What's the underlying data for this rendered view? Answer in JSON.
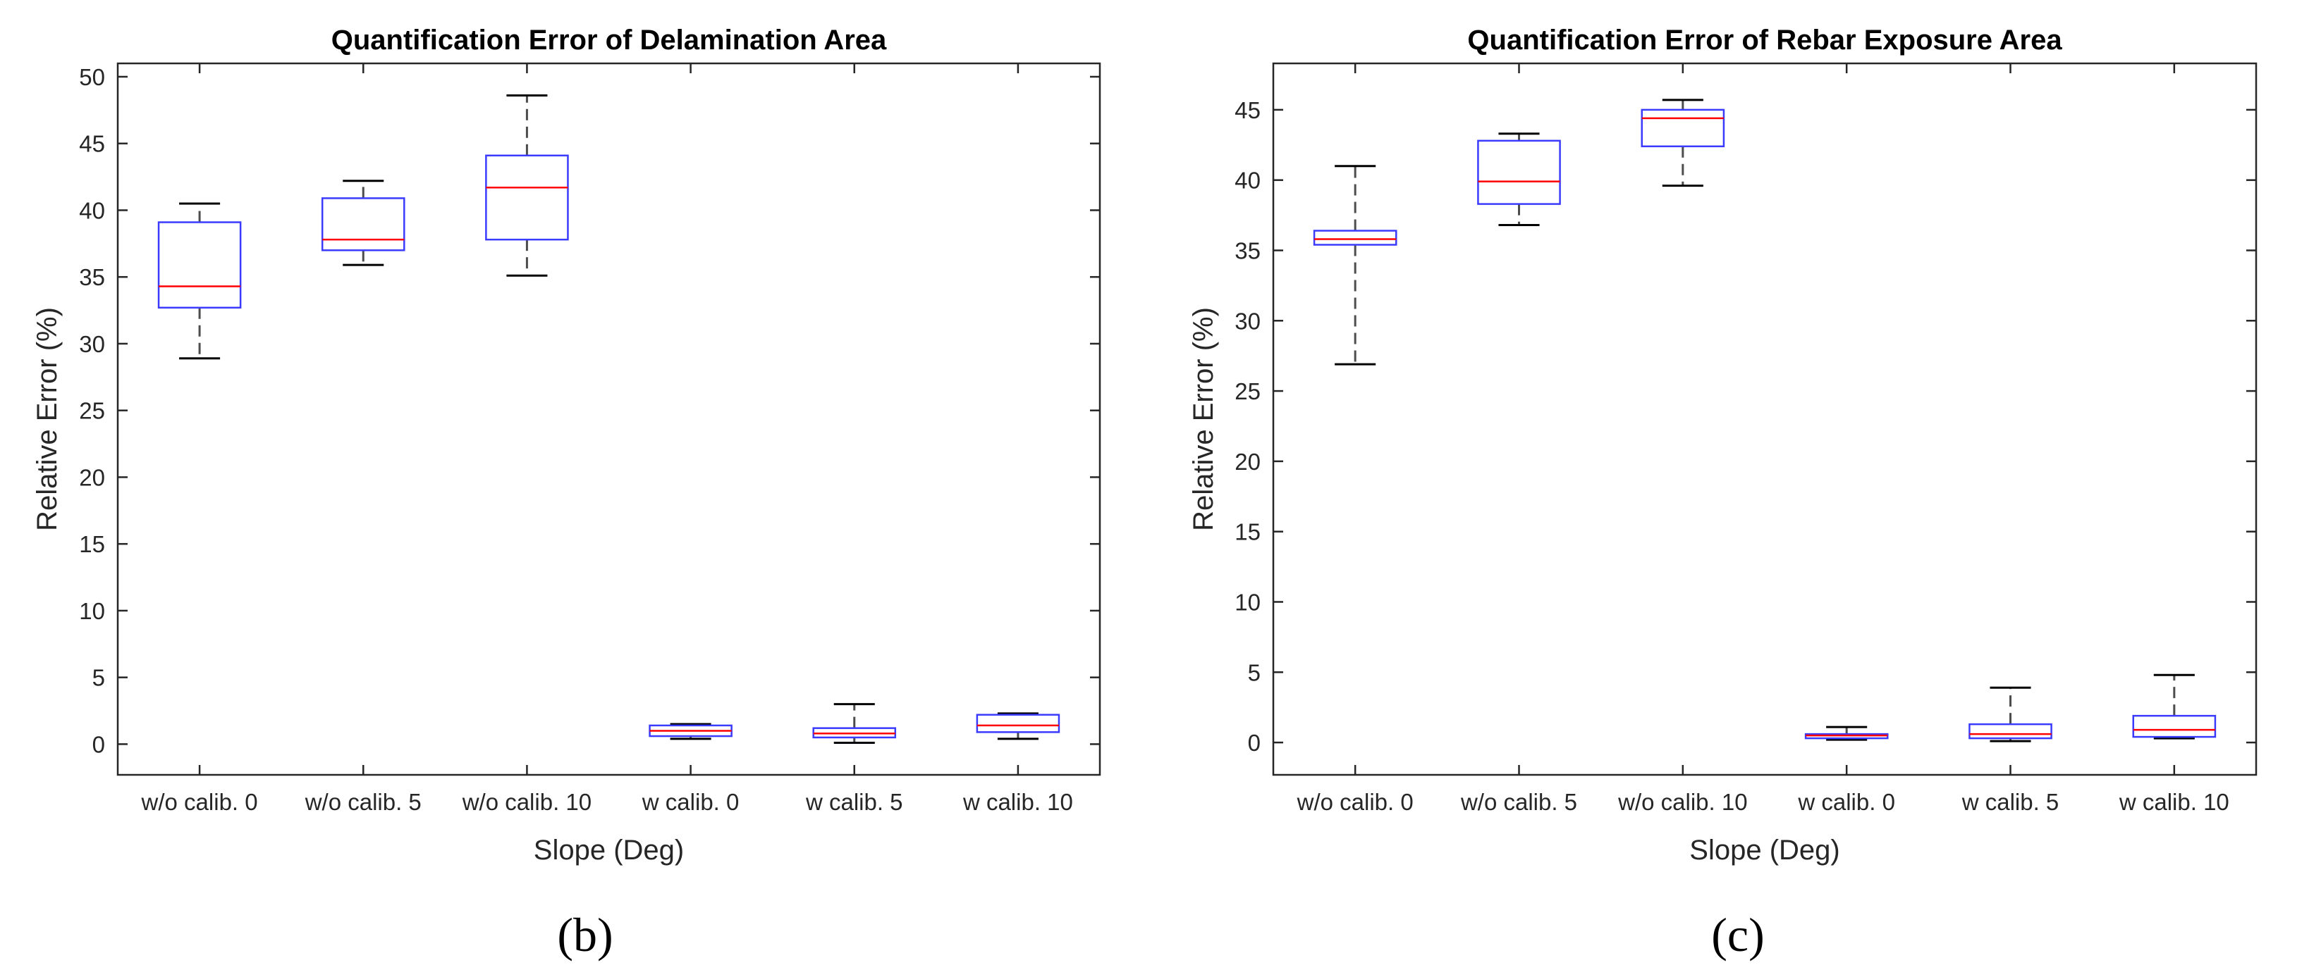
{
  "chart_data": [
    {
      "type": "box",
      "title": "Quantification Error of Delamination Area",
      "xlabel": "Slope (Deg)",
      "ylabel": "Relative Error (%)",
      "ylim": [
        -2.3,
        51
      ],
      "yticks": [
        0,
        5,
        10,
        15,
        20,
        25,
        30,
        35,
        40,
        45,
        50
      ],
      "categories": [
        "w/o calib. 0",
        "w/o calib. 5",
        "w/o calib. 10",
        "w calib. 0",
        "w calib. 5",
        "w calib. 10"
      ],
      "boxes": [
        {
          "min": 28.9,
          "q1": 32.7,
          "median": 34.3,
          "q3": 39.1,
          "max": 40.5
        },
        {
          "min": 35.9,
          "q1": 37.0,
          "median": 37.8,
          "q3": 40.9,
          "max": 42.2
        },
        {
          "min": 35.1,
          "q1": 37.8,
          "median": 41.7,
          "q3": 44.1,
          "max": 48.6
        },
        {
          "min": 0.4,
          "q1": 0.6,
          "median": 1.0,
          "q3": 1.4,
          "max": 1.5
        },
        {
          "min": 0.1,
          "q1": 0.5,
          "median": 0.8,
          "q3": 1.2,
          "max": 3.0
        },
        {
          "min": 0.4,
          "q1": 0.9,
          "median": 1.4,
          "q3": 2.2,
          "max": 2.3
        }
      ],
      "panel_label": "(b)"
    },
    {
      "type": "box",
      "title": "Quantification Error of Rebar Exposure Area",
      "xlabel": "Slope (Deg)",
      "ylabel": "Relative Error (%)",
      "ylim": [
        -2.3,
        48.3
      ],
      "yticks": [
        0,
        5,
        10,
        15,
        20,
        25,
        30,
        35,
        40,
        45
      ],
      "categories": [
        "w/o calib. 0",
        "w/o calib. 5",
        "w/o calib. 10",
        "w calib. 0",
        "w calib. 5",
        "w calib. 10"
      ],
      "boxes": [
        {
          "min": 26.9,
          "q1": 35.4,
          "median": 35.8,
          "q3": 36.4,
          "max": 41.0
        },
        {
          "min": 36.8,
          "q1": 38.3,
          "median": 39.9,
          "q3": 42.8,
          "max": 43.3
        },
        {
          "min": 39.6,
          "q1": 42.4,
          "median": 44.4,
          "q3": 45.0,
          "max": 45.7
        },
        {
          "min": 0.2,
          "q1": 0.3,
          "median": 0.5,
          "q3": 0.6,
          "max": 1.1
        },
        {
          "min": 0.1,
          "q1": 0.3,
          "median": 0.6,
          "q3": 1.3,
          "max": 3.9
        },
        {
          "min": 0.3,
          "q1": 0.4,
          "median": 0.9,
          "q3": 1.9,
          "max": 4.8
        }
      ],
      "panel_label": "(c)"
    }
  ],
  "colors": {
    "box": "#3b3bff",
    "median": "#ff0000",
    "whisker": "#4d4d4d",
    "axis": "#262626",
    "grid": "#e6e6e6"
  }
}
